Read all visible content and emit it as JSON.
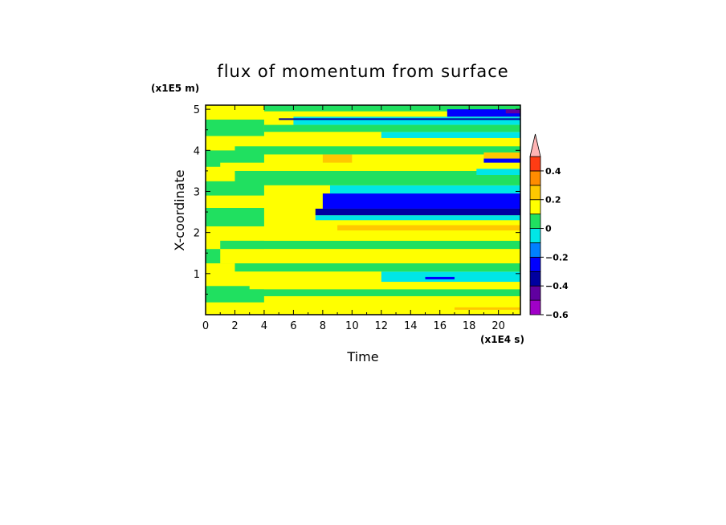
{
  "chart_data": {
    "type": "heatmap",
    "title": "flux of momentum from surface",
    "xlabel": "Time",
    "ylabel": "X-coordinate",
    "x_unit": "(x1E4 s)",
    "y_unit": "(x1E5 m)",
    "xlim": [
      0,
      21.5
    ],
    "ylim": [
      0,
      5.1
    ],
    "x_ticks": [
      0,
      2,
      4,
      6,
      8,
      10,
      12,
      14,
      16,
      18,
      20
    ],
    "y_ticks": [
      1,
      2,
      3,
      4,
      5
    ],
    "colorbar": {
      "levels": [
        -0.6,
        -0.5,
        -0.4,
        -0.3,
        -0.2,
        -0.1,
        0,
        0.1,
        0.2,
        0.3,
        0.4,
        0.5
      ],
      "labeled_levels": [
        -0.6,
        -0.4,
        -0.2,
        0,
        0.2,
        0.4
      ],
      "labels": [
        "−0.6",
        "−0.4",
        "−0.2",
        "0",
        "0.2",
        "0.4"
      ],
      "colors": [
        "#a000c8",
        "#6000a0",
        "#0000a0",
        "#0000ff",
        "#0080ff",
        "#00e6e6",
        "#20e060",
        "#ffff00",
        "#ffc800",
        "#ff8c00",
        "#ff3c14",
        "#ff9090"
      ],
      "extend_max_color": "#ffb4b4"
    },
    "band_colors": {
      "green": "#20e060",
      "yellow": "#ffff00",
      "cyan": "#00e6e6",
      "blue": "#0000ff",
      "navy": "#0000a0",
      "lightorange": "#ffc800",
      "purple": "#6000a0"
    },
    "regions": {
      "early_fields": [
        {
          "y0": 0.0,
          "y1": 0.3,
          "t0": 0,
          "t1": 4,
          "c": "yellow"
        },
        {
          "y0": 0.3,
          "y1": 0.7,
          "t0": 0,
          "t1": 4,
          "c": "green"
        },
        {
          "y0": 0.7,
          "y1": 1.25,
          "t0": 0,
          "t1": 4,
          "c": "yellow"
        },
        {
          "y0": 1.25,
          "y1": 1.6,
          "t0": 0,
          "t1": 4,
          "c": "green"
        },
        {
          "y0": 1.6,
          "y1": 2.15,
          "t0": 0,
          "t1": 4,
          "c": "yellow"
        },
        {
          "y0": 2.15,
          "y1": 2.6,
          "t0": 0,
          "t1": 4,
          "c": "green"
        },
        {
          "y0": 2.6,
          "y1": 2.9,
          "t0": 0,
          "t1": 4,
          "c": "yellow"
        },
        {
          "y0": 2.9,
          "y1": 3.25,
          "t0": 0,
          "t1": 4,
          "c": "green"
        },
        {
          "y0": 3.25,
          "y1": 3.6,
          "t0": 0,
          "t1": 4,
          "c": "yellow"
        },
        {
          "y0": 3.6,
          "y1": 4.0,
          "t0": 0,
          "t1": 4,
          "c": "green"
        },
        {
          "y0": 4.0,
          "y1": 4.35,
          "t0": 0,
          "t1": 4,
          "c": "yellow"
        },
        {
          "y0": 4.35,
          "y1": 4.75,
          "t0": 0,
          "t1": 4,
          "c": "green"
        },
        {
          "y0": 4.75,
          "y1": 5.1,
          "t0": 0,
          "t1": 4,
          "c": "yellow"
        }
      ],
      "bands": [
        {
          "y0": 0.0,
          "y1": 0.12,
          "t0": 4,
          "t1": 21.5,
          "c": "yellow"
        },
        {
          "y0": 0.12,
          "y1": 0.18,
          "t0": 17,
          "t1": 21.5,
          "c": "lightorange"
        },
        {
          "y0": 0.18,
          "y1": 0.45,
          "t0": 4,
          "t1": 21.5,
          "c": "yellow"
        },
        {
          "y0": 0.45,
          "y1": 0.62,
          "t0": 2,
          "t1": 21.5,
          "c": "green"
        },
        {
          "y0": 0.62,
          "y1": 0.8,
          "t0": 3,
          "t1": 21.5,
          "c": "yellow"
        },
        {
          "y0": 0.8,
          "y1": 1.05,
          "t0": 12,
          "t1": 21.5,
          "c": "cyan"
        },
        {
          "y0": 0.86,
          "y1": 0.92,
          "t0": 15,
          "t1": 17,
          "c": "blue"
        },
        {
          "y0": 1.05,
          "y1": 1.25,
          "t0": 2,
          "t1": 21.5,
          "c": "green"
        },
        {
          "y0": 1.25,
          "y1": 1.6,
          "t0": 1,
          "t1": 21.5,
          "c": "yellow"
        },
        {
          "y0": 1.6,
          "y1": 1.8,
          "t0": 1,
          "t1": 21.5,
          "c": "green"
        },
        {
          "y0": 1.8,
          "y1": 2.05,
          "t0": 4,
          "t1": 21.5,
          "c": "yellow"
        },
        {
          "y0": 2.05,
          "y1": 2.18,
          "t0": 9,
          "t1": 21.5,
          "c": "lightorange"
        },
        {
          "y0": 2.18,
          "y1": 2.3,
          "t0": 5,
          "t1": 21.5,
          "c": "yellow"
        },
        {
          "y0": 2.3,
          "y1": 2.42,
          "t0": 7.5,
          "t1": 21.5,
          "c": "cyan"
        },
        {
          "y0": 2.42,
          "y1": 2.58,
          "t0": 7.5,
          "t1": 21.5,
          "c": "navy"
        },
        {
          "y0": 2.58,
          "y1": 2.95,
          "t0": 8,
          "t1": 21.5,
          "c": "blue"
        },
        {
          "y0": 2.95,
          "y1": 3.15,
          "t0": 8.5,
          "t1": 21.5,
          "c": "cyan"
        },
        {
          "y0": 3.15,
          "y1": 3.5,
          "t0": 2,
          "t1": 21.5,
          "c": "green"
        },
        {
          "y0": 3.5,
          "y1": 3.7,
          "t0": 1,
          "t1": 21.5,
          "c": "yellow"
        },
        {
          "y0": 3.7,
          "y1": 3.9,
          "t0": 8,
          "t1": 10,
          "c": "lightorange"
        },
        {
          "y0": 3.9,
          "y1": 4.1,
          "t0": 2,
          "t1": 21.5,
          "c": "green"
        },
        {
          "y0": 4.1,
          "y1": 4.3,
          "t0": 1,
          "t1": 21.5,
          "c": "yellow"
        },
        {
          "y0": 4.3,
          "y1": 4.45,
          "t0": 12,
          "t1": 21.5,
          "c": "cyan"
        },
        {
          "y0": 4.45,
          "y1": 4.62,
          "t0": 4,
          "t1": 21.5,
          "c": "green"
        },
        {
          "y0": 4.62,
          "y1": 4.82,
          "t0": 6,
          "t1": 21.5,
          "c": "cyan"
        },
        {
          "y0": 4.74,
          "y1": 4.78,
          "t0": 5,
          "t1": 21.5,
          "c": "navy"
        },
        {
          "y0": 4.82,
          "y1": 4.95,
          "t0": 4,
          "t1": 21.5,
          "c": "yellow"
        },
        {
          "y0": 4.95,
          "y1": 5.1,
          "t0": 4,
          "t1": 21.5,
          "c": "green"
        },
        {
          "y0": 4.82,
          "y1": 5.0,
          "t0": 16.5,
          "t1": 21.5,
          "c": "blue"
        },
        {
          "y0": 4.9,
          "y1": 5.0,
          "t0": 20.5,
          "t1": 21.5,
          "c": "purple"
        },
        {
          "y0": 3.7,
          "y1": 3.8,
          "t0": 19,
          "t1": 21.5,
          "c": "blue"
        },
        {
          "y0": 3.8,
          "y1": 3.95,
          "t0": 19,
          "t1": 21.5,
          "c": "lightorange"
        },
        {
          "y0": 3.4,
          "y1": 3.55,
          "t0": 18.5,
          "t1": 21.5,
          "c": "cyan"
        }
      ]
    }
  }
}
